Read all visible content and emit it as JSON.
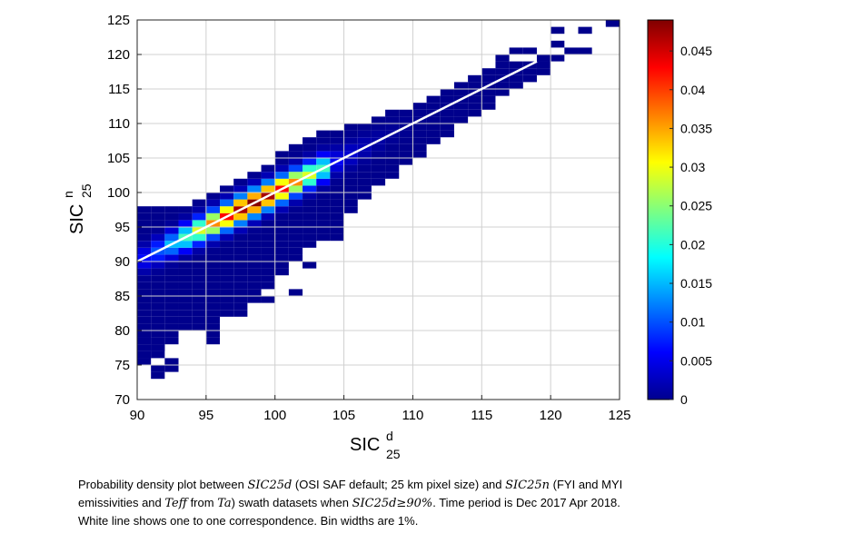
{
  "chart_data": {
    "type": "heatmap",
    "title": "",
    "xlabel": {
      "main": "SIC",
      "sup": "d",
      "sub": "25"
    },
    "ylabel": {
      "main": "SIC",
      "sup": "n",
      "sub": "25"
    },
    "xlim": [
      90,
      125
    ],
    "ylim": [
      70,
      125
    ],
    "xticks": [
      "90",
      "95",
      "100",
      "105",
      "110",
      "115",
      "120",
      "125"
    ],
    "yticks": [
      "70",
      "75",
      "80",
      "85",
      "90",
      "95",
      "100",
      "105",
      "110",
      "115",
      "120",
      "125"
    ],
    "grid": true,
    "bin_width": 1,
    "colorbar": {
      "range": [
        0,
        0.049
      ],
      "ticks": [
        "0",
        "0.005",
        "0.01",
        "0.015",
        "0.02",
        "0.025",
        "0.03",
        "0.035",
        "0.04",
        "0.045"
      ],
      "colormap": "jet"
    },
    "ridge_peak_density": 0.048,
    "ridge_width": 1.2,
    "envelope": {
      "x_from": [
        90,
        91,
        92,
        93,
        94,
        95,
        96,
        97,
        98,
        99,
        100,
        101,
        102,
        103,
        104,
        105,
        106,
        107,
        108,
        109,
        110,
        111,
        112,
        113,
        114,
        115,
        116,
        117,
        118,
        119
      ],
      "y_low": [
        75,
        76,
        79,
        80,
        80,
        79,
        82,
        82,
        84,
        86,
        88,
        90,
        92,
        93,
        95,
        97,
        99,
        101,
        102,
        104,
        105,
        107,
        108,
        110,
        111,
        112,
        114,
        115,
        116,
        117
      ],
      "y_high": [
        98,
        98,
        98,
        98,
        99,
        100,
        101,
        102,
        103,
        104,
        106,
        107,
        108,
        109,
        109,
        110,
        110,
        111,
        112,
        112,
        113,
        114,
        115,
        116,
        117,
        118,
        119,
        119,
        119,
        120
      ]
    },
    "outlier_bins": [
      [
        90,
        76
      ],
      [
        90,
        78
      ],
      [
        91,
        73
      ],
      [
        91,
        74
      ],
      [
        91,
        77
      ],
      [
        92,
        74
      ],
      [
        92,
        75
      ],
      [
        92,
        78
      ],
      [
        95,
        78
      ],
      [
        99,
        84
      ],
      [
        101,
        85
      ],
      [
        102,
        89
      ],
      [
        104,
        93
      ],
      [
        104,
        94
      ],
      [
        116,
        119
      ],
      [
        117,
        120
      ],
      [
        118,
        120
      ],
      [
        119,
        118
      ],
      [
        120,
        119
      ],
      [
        120,
        121
      ],
      [
        120,
        123
      ],
      [
        121,
        120
      ],
      [
        122,
        120
      ],
      [
        122,
        123
      ],
      [
        124,
        124
      ]
    ],
    "one_to_one_line": {
      "x": [
        90,
        119
      ],
      "y": [
        90,
        119
      ],
      "color": "#ffffff"
    },
    "caption": [
      [
        {
          "text": "Probability density plot between "
        },
        {
          "text": "SIC25d",
          "math": true
        },
        {
          "text": " (OSI SAF default; 25 km pixel size) and "
        },
        {
          "text": "SIC25n",
          "math": true
        },
        {
          "text": " (FYI and MYI"
        }
      ],
      [
        {
          "text": "emissivities and "
        },
        {
          "text": "Teff",
          "math": true
        },
        {
          "text": " from "
        },
        {
          "text": "Ta",
          "math": true
        },
        {
          "text": ") swath datasets when "
        },
        {
          "text": "SIC25d≥90%",
          "math": true
        },
        {
          "text": ". Time period is Dec 2017 Apr 2018."
        }
      ],
      [
        {
          "text": "White line shows one to one correspondence. Bin widths are 1%."
        }
      ]
    ]
  }
}
